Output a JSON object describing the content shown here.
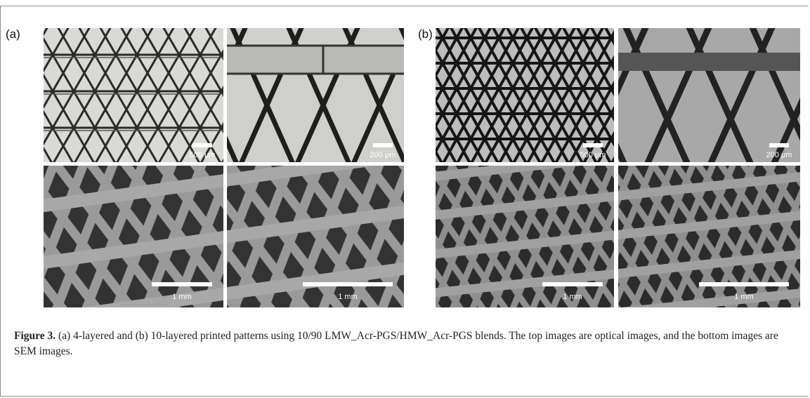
{
  "figure": {
    "panels": [
      {
        "label": "(a)",
        "images": [
          {
            "kind": "optical",
            "scale_bar": "500 μm"
          },
          {
            "kind": "optical",
            "scale_bar": "200 μm"
          },
          {
            "kind": "sem",
            "scale_bar": "1 mm"
          },
          {
            "kind": "sem",
            "scale_bar": "1 mm"
          }
        ]
      },
      {
        "label": "(b)",
        "images": [
          {
            "kind": "optical",
            "scale_bar": "500 μm"
          },
          {
            "kind": "optical",
            "scale_bar": "200 μm"
          },
          {
            "kind": "sem",
            "scale_bar": "1 mm"
          },
          {
            "kind": "sem",
            "scale_bar": "1 mm"
          }
        ]
      }
    ],
    "caption": {
      "label": "Figure 3.",
      "text": "(a) 4-layered and (b) 10-layered printed patterns using 10/90 LMW_Acr-PGS/HMW_Acr-PGS blends. The top images are optical images, and the bottom images are SEM images."
    }
  }
}
